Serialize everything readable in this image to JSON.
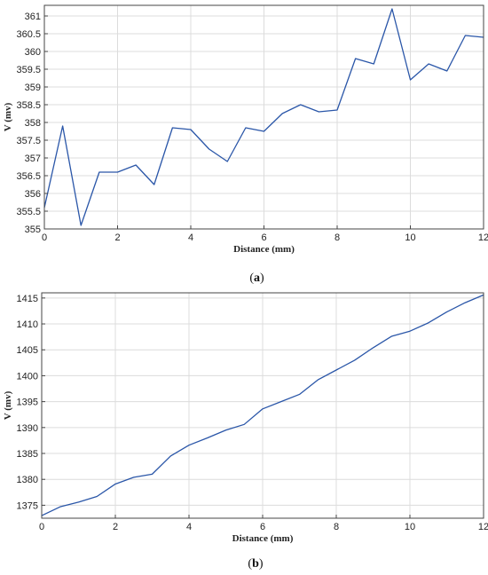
{
  "chart_data": [
    {
      "type": "line",
      "caption_label": "a",
      "xlabel": "Distance (mm)",
      "ylabel": "V (mv)",
      "xlim": [
        0,
        12
      ],
      "ylim": [
        355,
        361.3
      ],
      "xticks": [
        0,
        2,
        4,
        6,
        8,
        10,
        12
      ],
      "yticks": [
        355,
        355.5,
        356,
        356.5,
        357,
        357.5,
        358,
        358.5,
        359,
        359.5,
        360,
        360.5,
        361
      ],
      "grid": true,
      "color": "#2a56a8",
      "x": [
        0,
        0.5,
        1,
        1.5,
        2,
        2.5,
        3,
        3.5,
        4,
        4.5,
        5,
        5.5,
        6,
        6.5,
        7,
        7.5,
        8,
        8.5,
        9,
        9.5,
        10,
        10.5,
        11,
        11.5,
        12
      ],
      "y": [
        355.6,
        357.9,
        355.1,
        356.6,
        356.6,
        356.8,
        356.25,
        357.85,
        357.8,
        357.25,
        356.9,
        357.85,
        357.75,
        358.25,
        358.5,
        358.3,
        358.35,
        359.8,
        359.65,
        361.2,
        359.2,
        359.65,
        359.45,
        360.45,
        360.4
      ]
    },
    {
      "type": "line",
      "caption_label": "b",
      "xlabel": "Distance (mm)",
      "ylabel": "V (mv)",
      "xlim": [
        0,
        12
      ],
      "ylim": [
        1372.5,
        1416
      ],
      "xticks": [
        0,
        2,
        4,
        6,
        8,
        10,
        12
      ],
      "yticks": [
        1375,
        1380,
        1385,
        1390,
        1395,
        1400,
        1405,
        1410,
        1415
      ],
      "grid": true,
      "color": "#2a56a8",
      "x": [
        0,
        0.5,
        1,
        1.5,
        2,
        2.5,
        3,
        3.5,
        4,
        4.5,
        5,
        5.5,
        6,
        6.5,
        7,
        7.5,
        8,
        8.5,
        9,
        9.5,
        10,
        10.5,
        11,
        11.5,
        12
      ],
      "y": [
        1373,
        1374.7,
        1375.6,
        1376.7,
        1379.1,
        1380.4,
        1381,
        1384.5,
        1386.6,
        1388,
        1389.5,
        1390.6,
        1393.6,
        1395,
        1396.4,
        1399.2,
        1401.1,
        1403,
        1405.4,
        1407.6,
        1408.6,
        1410.2,
        1412.3,
        1414.1,
        1415.6
      ]
    }
  ]
}
